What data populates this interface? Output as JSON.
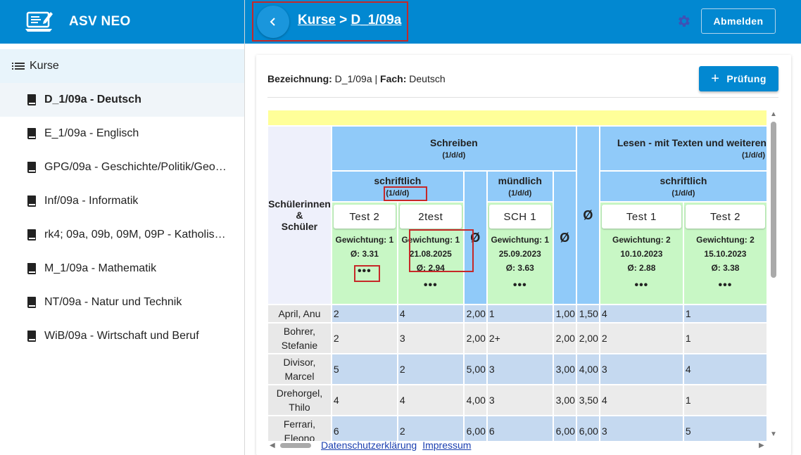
{
  "app": {
    "name": "ASV NEO",
    "logo_icon": "laptop-edit-icon"
  },
  "colors": {
    "primary": "#0288d1",
    "header_blue": "#90caf9",
    "test_green": "#c8f7c5",
    "row_blue": "#c5d9f0",
    "row_grey": "#ebebeb",
    "highlight": "#c62828"
  },
  "sidebar": {
    "section_label": "Kurse",
    "items": [
      {
        "label": "D_1/09a - Deutsch",
        "active": true
      },
      {
        "label": "E_1/09a - Englisch"
      },
      {
        "label": "GPG/09a - Geschichte/Politik/Geo…"
      },
      {
        "label": "Inf/09a - Informatik"
      },
      {
        "label": "rk4; 09a, 09b, 09M, 09P - Katholis…"
      },
      {
        "label": "M_1/09a - Mathematik"
      },
      {
        "label": "NT/09a - Natur und Technik"
      },
      {
        "label": "WiB/09a - Wirtschaft und Beruf"
      }
    ]
  },
  "topbar": {
    "breadcrumb_root": "Kurse",
    "breadcrumb_sep": " > ",
    "breadcrumb_current": "D_1/09a",
    "logout_label": "Abmelden"
  },
  "info": {
    "bezeichnung_label": "Bezeichnung:",
    "bezeichnung_value": "D_1/09a",
    "separator": "|",
    "fach_label": "Fach:",
    "fach_value": "Deutsch"
  },
  "add_exam_label": "Prüfung",
  "grid": {
    "student_header_1": "Schülerinnen",
    "student_header_2": "&",
    "student_header_3": "Schüler",
    "avg_symbol": "Ø",
    "more_symbol": "•••",
    "groups": [
      {
        "title": "Schreiben",
        "weight": "(1/d/d)"
      },
      {
        "title": "Lesen - mit Texten und weiteren",
        "weight": "(1/d/d)"
      }
    ],
    "subgroups": [
      {
        "title": "schriftlich",
        "weight": "(1/d/d)"
      },
      {
        "title": "mündlich",
        "weight": "(1/d/d)"
      },
      {
        "title": "schriftlich",
        "weight": "(1/d/d)"
      }
    ],
    "tests": [
      {
        "name": "Test 2",
        "weight": "Gewichtung: 1",
        "date": "",
        "avg": "Ø:  3.31"
      },
      {
        "name": "2test",
        "weight": "Gewichtung: 1",
        "date": "21.08.2025",
        "avg": "Ø:  2.94"
      },
      {
        "name": "SCH 1",
        "weight": "Gewichtung: 1",
        "date": "25.09.2023",
        "avg": "Ø:  3.63"
      },
      {
        "name": "Test 1",
        "weight": "Gewichtung: 2",
        "date": "10.10.2023",
        "avg": "Ø:  2.88"
      },
      {
        "name": "Test 2",
        "weight": "Gewichtung: 2",
        "date": "15.10.2023",
        "avg": "Ø:  3.38"
      }
    ],
    "rows": [
      {
        "name": "April, Anu",
        "t1": "2",
        "t2": "4",
        "a1": "2,00",
        "m1": "1",
        "a2": "1,00",
        "a3": "1,50",
        "l1": "4",
        "l2": "1"
      },
      {
        "name": "Bohrer, Stefanie",
        "t1": "2",
        "t2": "3",
        "a1": "2,00",
        "m1": "2+",
        "a2": "2,00",
        "a3": "2,00",
        "l1": "2",
        "l2": "1"
      },
      {
        "name": "Divisor, Marcel",
        "t1": "5",
        "t2": "2",
        "a1": "5,00",
        "m1": "3",
        "a2": "3,00",
        "a3": "4,00",
        "l1": "3",
        "l2": "4"
      },
      {
        "name": "Drehorgel, Thilo",
        "t1": "4",
        "t2": "4",
        "a1": "4,00",
        "m1": "3",
        "a2": "3,00",
        "a3": "3,50",
        "l1": "4",
        "l2": "1"
      },
      {
        "name": "Ferrari, Eleono",
        "t1": "6",
        "t2": "2",
        "a1": "6,00",
        "m1": "6",
        "a2": "6,00",
        "a3": "6,00",
        "l1": "3",
        "l2": "5"
      }
    ]
  },
  "footer": {
    "privacy": "Datenschutzerklärung",
    "imprint": "Impressum"
  }
}
